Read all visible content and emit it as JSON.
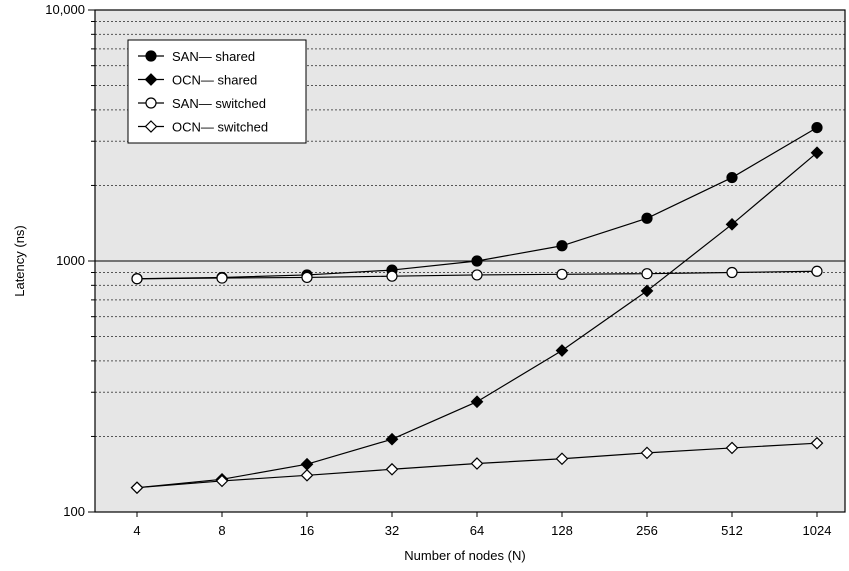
{
  "chart_data": {
    "type": "line",
    "title": "",
    "xlabel": "Number of nodes (N)",
    "ylabel": "Latency (ns)",
    "x_scale": "log2",
    "y_scale": "log10",
    "ylim": [
      100,
      10000
    ],
    "categories": [
      "4",
      "8",
      "16",
      "32",
      "64",
      "128",
      "256",
      "512",
      "1024"
    ],
    "y_ticks": [
      {
        "value": 100,
        "label": "100"
      },
      {
        "value": 1000,
        "label": "1000"
      },
      {
        "value": 10000,
        "label": "10,000"
      }
    ],
    "grid": "dotted horizontal at minor log intervals",
    "legend_position": "top-left",
    "colors": {
      "background": "#e6e6e6",
      "line": "#000000",
      "grid": "#555555"
    },
    "series": [
      {
        "name": "SAN— shared",
        "marker": "filled-circle",
        "values": [
          850,
          860,
          880,
          920,
          1000,
          1150,
          1480,
          2150,
          3400
        ]
      },
      {
        "name": "OCN— shared",
        "marker": "filled-diamond",
        "values": [
          125,
          135,
          155,
          195,
          275,
          440,
          760,
          1400,
          2700
        ]
      },
      {
        "name": "SAN— switched",
        "marker": "open-circle",
        "values": [
          850,
          855,
          860,
          870,
          880,
          885,
          890,
          900,
          910
        ]
      },
      {
        "name": "OCN— switched",
        "marker": "open-diamond",
        "values": [
          125,
          133,
          140,
          148,
          156,
          163,
          172,
          180,
          188
        ]
      }
    ]
  }
}
